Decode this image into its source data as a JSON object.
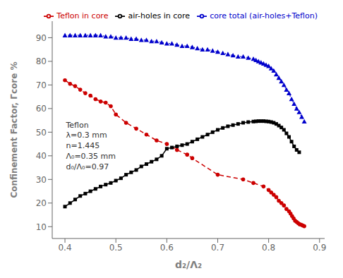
{
  "chart_data": {
    "type": "line",
    "xlabel": "d₂/Λ₂",
    "ylabel": "Confinement Factor, Γcore  %",
    "xlim": [
      0.375,
      0.91
    ],
    "ylim": [
      5,
      97
    ],
    "xticks": [
      0.4,
      0.5,
      0.6,
      0.7,
      0.8,
      0.9
    ],
    "yticks": [
      10,
      20,
      30,
      40,
      50,
      60,
      70,
      80,
      90
    ],
    "legend": "upper right",
    "series": [
      {
        "name": "air-holes in core",
        "color": "#000000",
        "marker": "square",
        "line_style": "solid",
        "x": [
          0.4,
          0.41,
          0.42,
          0.43,
          0.44,
          0.45,
          0.46,
          0.47,
          0.48,
          0.49,
          0.5,
          0.51,
          0.52,
          0.53,
          0.54,
          0.55,
          0.56,
          0.57,
          0.58,
          0.59,
          0.6,
          0.61,
          0.62,
          0.63,
          0.64,
          0.65,
          0.66,
          0.67,
          0.68,
          0.69,
          0.7,
          0.71,
          0.72,
          0.73,
          0.74,
          0.75,
          0.76,
          0.77,
          0.775,
          0.78,
          0.785,
          0.79,
          0.795,
          0.8,
          0.805,
          0.81,
          0.815,
          0.82,
          0.825,
          0.83,
          0.835,
          0.84,
          0.845,
          0.85,
          0.855,
          0.86
        ],
        "values": [
          18.5,
          20.0,
          21.5,
          23.0,
          24.0,
          25.0,
          26.0,
          27.0,
          27.8,
          28.5,
          29.5,
          30.5,
          32.0,
          33.0,
          34.0,
          35.5,
          36.5,
          37.5,
          38.5,
          40.0,
          43.0,
          43.5,
          44.0,
          44.5,
          45.0,
          46.0,
          47.0,
          48.0,
          49.0,
          50.0,
          51.0,
          51.8,
          52.5,
          53.0,
          53.5,
          54.0,
          54.3,
          54.5,
          54.6,
          54.7,
          54.7,
          54.7,
          54.6,
          54.5,
          54.3,
          54.0,
          53.5,
          52.8,
          52.0,
          51.0,
          49.5,
          48.0,
          46.0,
          44.0,
          42.5,
          41.5
        ]
      },
      {
        "name": "Teflon in core",
        "color": "#cc0000",
        "marker": "circle",
        "line_style": "dashed",
        "x": [
          0.4,
          0.41,
          0.42,
          0.43,
          0.44,
          0.45,
          0.46,
          0.47,
          0.48,
          0.49,
          0.5,
          0.52,
          0.54,
          0.56,
          0.58,
          0.6,
          0.62,
          0.64,
          0.65,
          0.7,
          0.75,
          0.77,
          0.79,
          0.8,
          0.805,
          0.81,
          0.815,
          0.82,
          0.825,
          0.83,
          0.835,
          0.84,
          0.843,
          0.846,
          0.849,
          0.852,
          0.855,
          0.858,
          0.861,
          0.864,
          0.867,
          0.87
        ],
        "values": [
          72.0,
          70.5,
          69.5,
          68.0,
          66.5,
          65.5,
          64.0,
          63.0,
          62.5,
          61.0,
          57.5,
          54.0,
          51.5,
          49.0,
          46.5,
          45.0,
          42.5,
          40.5,
          39.0,
          32.0,
          30.0,
          28.5,
          27.0,
          25.5,
          24.5,
          23.5,
          22.5,
          21.0,
          20.0,
          19.0,
          17.5,
          16.5,
          15.5,
          14.5,
          13.5,
          12.5,
          12.0,
          11.5,
          11.0,
          10.8,
          10.5,
          10.2
        ]
      },
      {
        "name": "core total (air-holes+Teflon)",
        "color": "#0000cc",
        "marker": "triangle",
        "line_style": "dotted",
        "x": [
          0.4,
          0.41,
          0.42,
          0.43,
          0.44,
          0.45,
          0.46,
          0.47,
          0.48,
          0.49,
          0.5,
          0.51,
          0.52,
          0.53,
          0.54,
          0.55,
          0.56,
          0.57,
          0.58,
          0.59,
          0.6,
          0.61,
          0.62,
          0.63,
          0.64,
          0.65,
          0.66,
          0.67,
          0.68,
          0.69,
          0.7,
          0.71,
          0.72,
          0.73,
          0.74,
          0.75,
          0.76,
          0.77,
          0.775,
          0.78,
          0.785,
          0.79,
          0.795,
          0.8,
          0.805,
          0.81,
          0.815,
          0.82,
          0.825,
          0.83,
          0.835,
          0.84,
          0.845,
          0.85,
          0.855,
          0.86,
          0.865,
          0.87
        ],
        "values": [
          91.0,
          91.0,
          91.0,
          91.0,
          91.0,
          91.0,
          91.0,
          91.0,
          90.5,
          90.5,
          90.0,
          90.0,
          90.0,
          89.5,
          89.5,
          89.0,
          89.0,
          88.5,
          88.5,
          88.0,
          87.5,
          87.5,
          87.0,
          86.5,
          86.5,
          86.0,
          85.5,
          85.0,
          85.0,
          84.5,
          84.0,
          83.5,
          83.0,
          82.5,
          82.0,
          82.0,
          81.5,
          81.0,
          80.5,
          80.0,
          79.5,
          79.0,
          78.5,
          78.0,
          77.0,
          76.0,
          74.5,
          73.0,
          71.5,
          70.0,
          68.0,
          66.5,
          64.0,
          62.0,
          60.0,
          58.5,
          56.5,
          54.5
        ]
      }
    ],
    "annotations": [
      {
        "text": "Teflon\nλ=0.3 mm\nn=1.445\nΛ₀=0.35 mm\nd₀/Λ₀=0.97",
        "x": 0.402,
        "y": 55
      }
    ]
  }
}
